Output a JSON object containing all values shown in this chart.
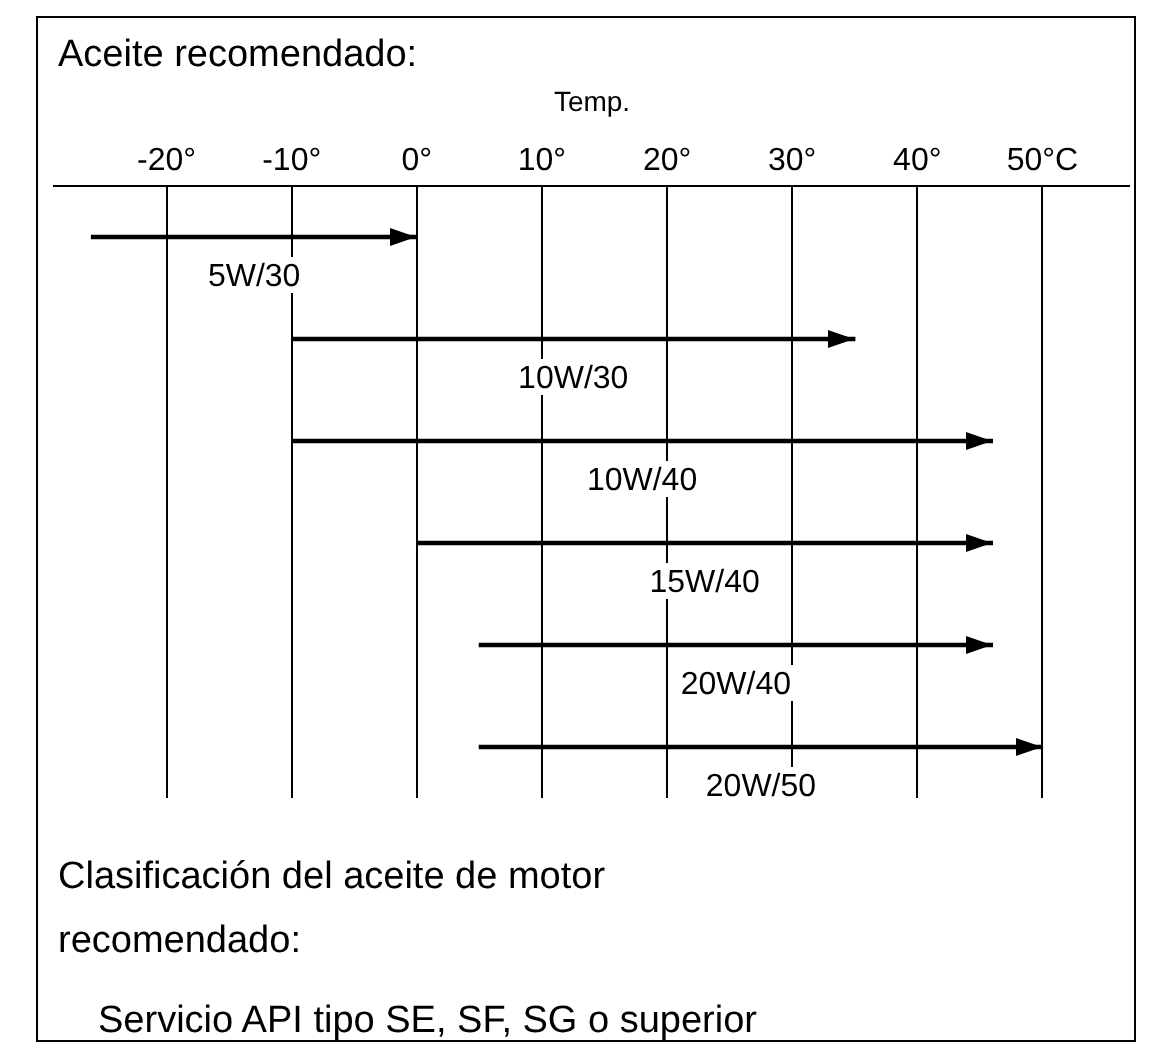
{
  "chart_data": {
    "type": "bar",
    "orientation": "horizontal",
    "title": "Aceite recomendado:",
    "xlabel": "Temp.",
    "categories": [
      "5W/30",
      "10W/30",
      "10W/40",
      "15W/40",
      "20W/40",
      "20W/50"
    ],
    "base": [
      -26,
      -10,
      -10,
      0,
      5,
      5
    ],
    "values": [
      26,
      45,
      56,
      46,
      41,
      45
    ],
    "color": "#000000",
    "xlim": [
      -29,
      57
    ],
    "xticks": [
      {
        "value": -20,
        "label": "-20°"
      },
      {
        "value": -10,
        "label": "-10°"
      },
      {
        "value": 0,
        "label": "0°"
      },
      {
        "value": 10,
        "label": "10°"
      },
      {
        "value": 20,
        "label": "20°"
      },
      {
        "value": 30,
        "label": "30°"
      },
      {
        "value": 40,
        "label": "40°"
      },
      {
        "value": 50,
        "label": "50°C"
      }
    ],
    "grid": "x",
    "tick_labels": "x",
    "legend": false,
    "annotations": [
      "Clasificación del aceite de motor recomendado:",
      "Servicio API tipo SE, SF, SG o superior"
    ]
  }
}
